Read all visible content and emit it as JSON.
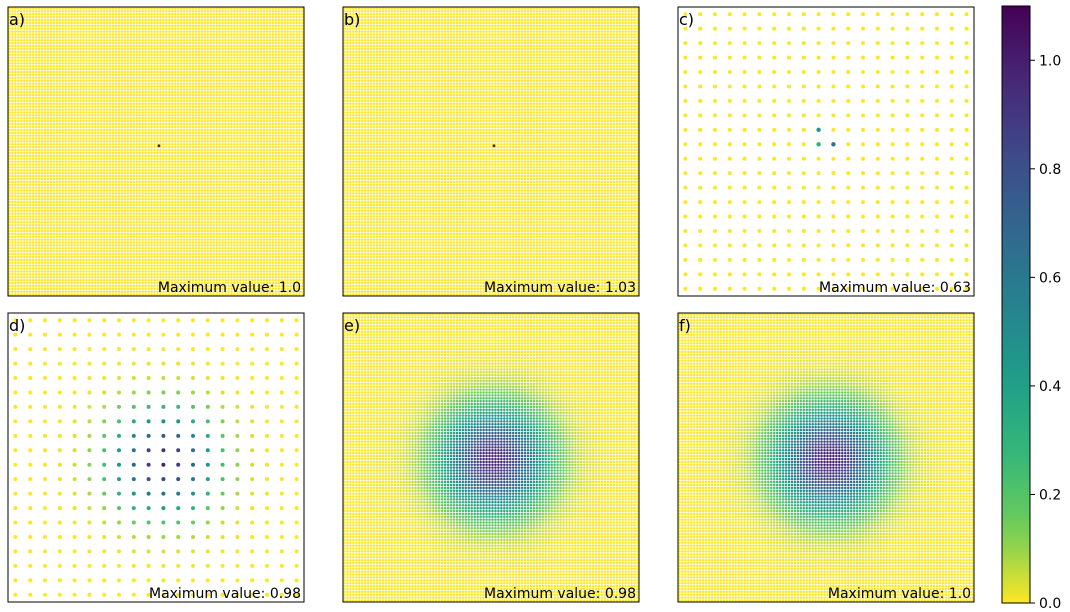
{
  "chart_data": {
    "type": "scatter",
    "colormap": "viridis_r",
    "colorbar": {
      "min": 0.0,
      "max": 1.1,
      "ticks": [
        0.0,
        0.2,
        0.4,
        0.6,
        0.8,
        1.0
      ],
      "tick_labels": [
        "0.0",
        "0.2",
        "0.4",
        "0.6",
        "0.8",
        "1.0"
      ]
    },
    "panels": [
      {
        "label": "a)",
        "annotation": "Maximum value: 1.0",
        "grid_points_per_side": 100,
        "background_value": 0.0,
        "peaks": [
          {
            "col": 50.5,
            "row": 47.5,
            "value": 1.0
          }
        ],
        "description_value": "single point spike"
      },
      {
        "label": "b)",
        "annotation": "Maximum value: 1.03",
        "grid_points_per_side": 100,
        "background_value": 0.0,
        "peaks": [
          {
            "col": 50.5,
            "row": 47.5,
            "value": 1.03
          }
        ]
      },
      {
        "label": "c)",
        "annotation": "Maximum value: 0.63",
        "grid_points_per_side": 20,
        "background_value": 0.0,
        "peaks": [
          {
            "col": 9,
            "row": 8,
            "value": 0.45
          },
          {
            "col": 9,
            "row": 9,
            "value": 0.3
          },
          {
            "col": 10,
            "row": 9,
            "value": 0.63
          }
        ]
      },
      {
        "label": "d)",
        "annotation": "Maximum value: 0.98",
        "grid_points_per_side": 20,
        "background_value": 0.0,
        "gaussian": {
          "center_col": 10,
          "center_row": 9.8,
          "sigma": 2.4,
          "amplitude": 0.98
        }
      },
      {
        "label": "e)",
        "annotation": "Maximum value: 0.98",
        "grid_points_per_side": 100,
        "background_value": 0.0,
        "gaussian": {
          "center_col": 50.5,
          "center_row": 50.5,
          "sigma": 12.0,
          "amplitude": 0.98
        }
      },
      {
        "label": "f)",
        "annotation": "Maximum value: 1.0",
        "grid_points_per_side": 100,
        "background_value": 0.0,
        "gaussian": {
          "center_col": 50.5,
          "center_row": 50.5,
          "sigma": 12.0,
          "amplitude": 1.0
        }
      }
    ]
  }
}
